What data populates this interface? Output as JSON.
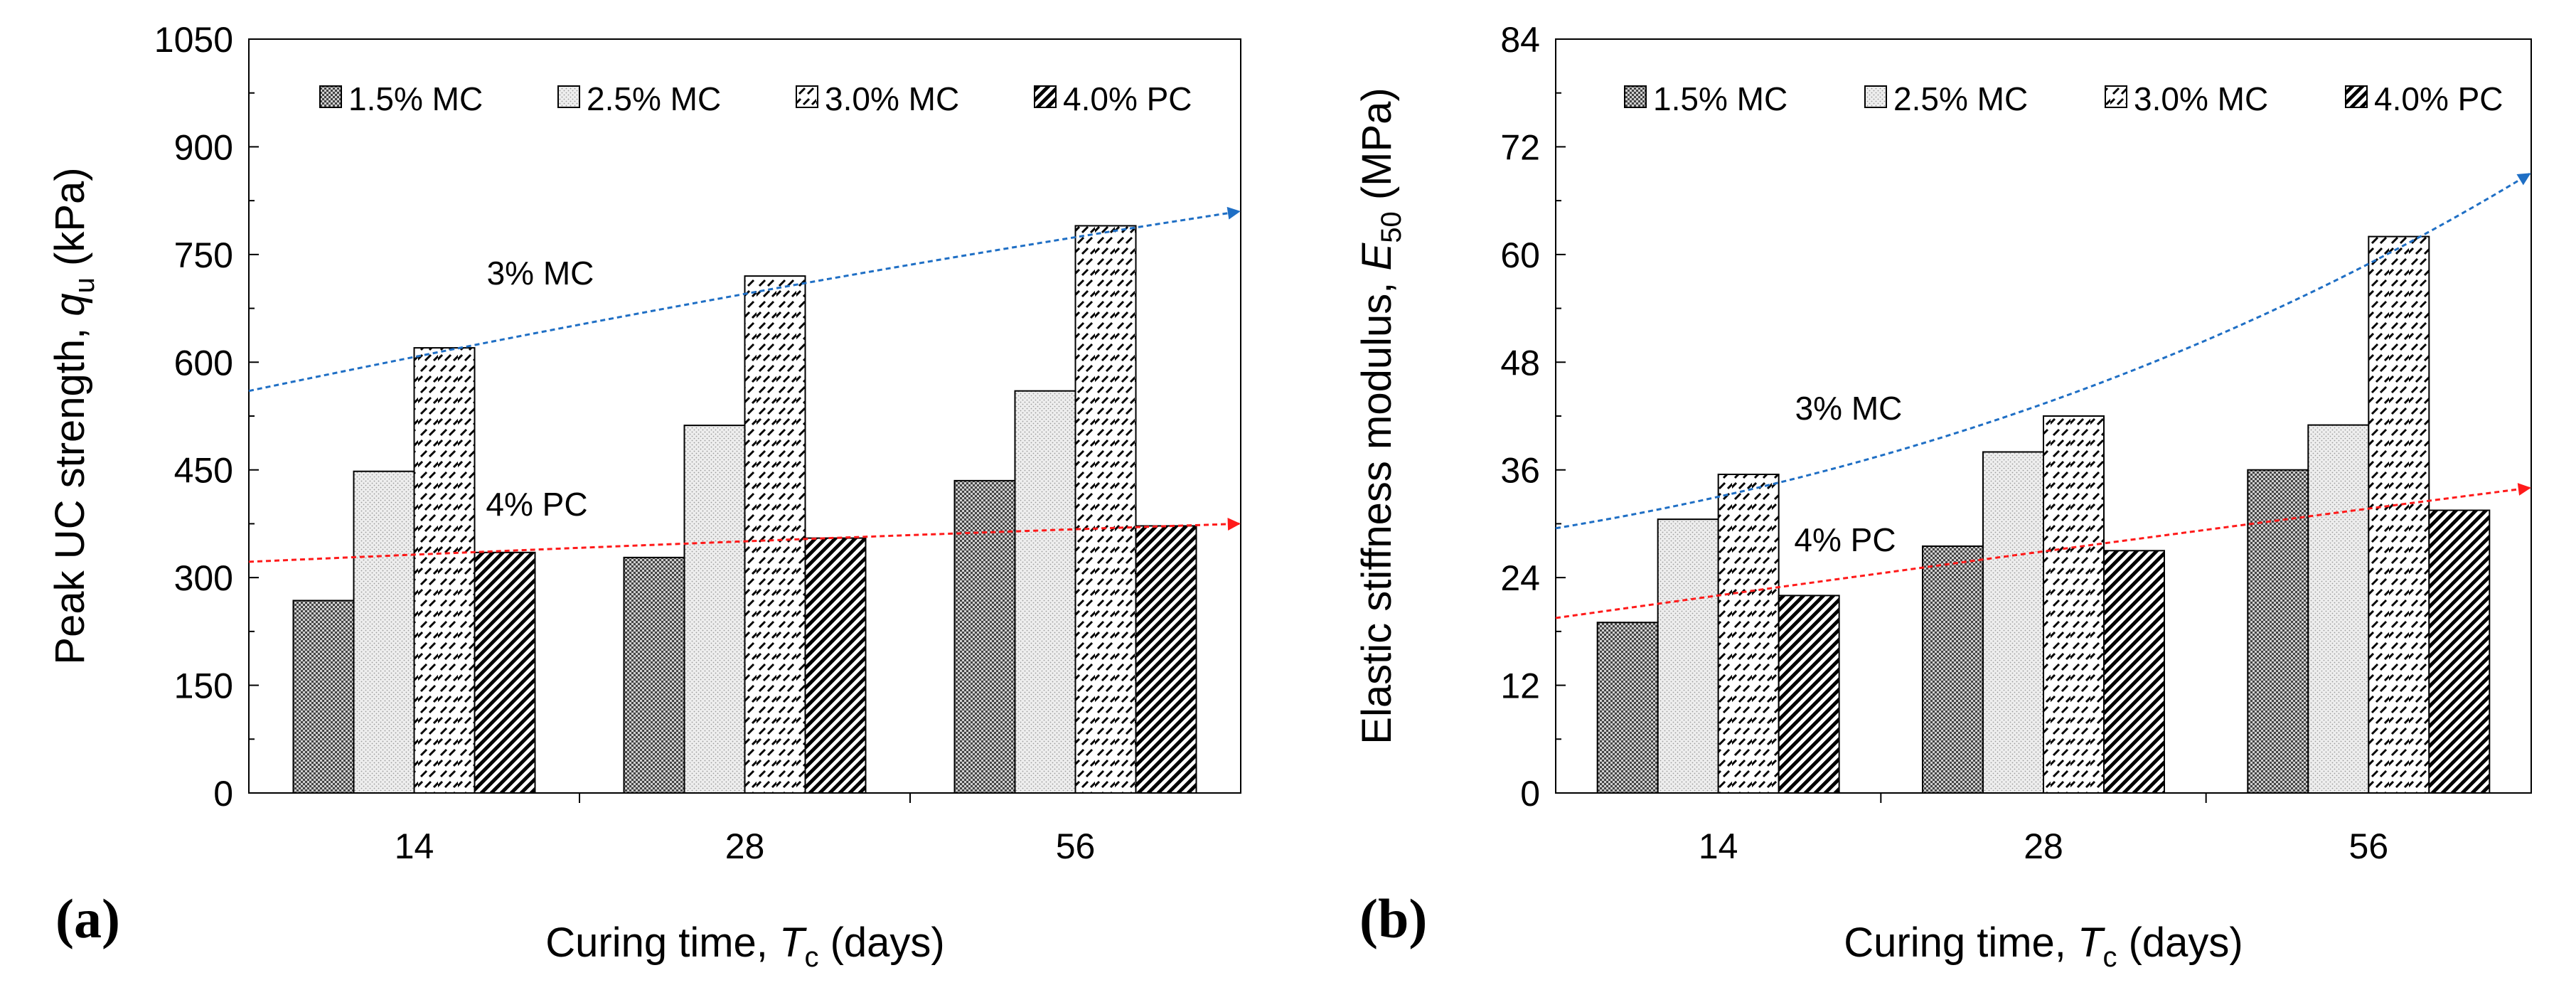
{
  "chart_data": [
    {
      "type": "bar",
      "panel_label": "(a)",
      "categories": [
        "14",
        "28",
        "56"
      ],
      "series": [
        {
          "name": "1.5% MC",
          "values": [
            268,
            328,
            435
          ]
        },
        {
          "name": "2.5% MC",
          "values": [
            448,
            512,
            560
          ]
        },
        {
          "name": "3.0% MC",
          "values": [
            620,
            720,
            790
          ]
        },
        {
          "name": "4.0% PC",
          "values": [
            335,
            355,
            372
          ]
        }
      ],
      "ylabel": "Peak UC strength, q",
      "ylabel_sub": "u",
      "ylabel_unit": " (kPa)",
      "xlabel": "Curing time, T",
      "xlabel_sub": "c",
      "xlabel_unit": " (days)",
      "ylim": [
        0,
        1050
      ],
      "yticks": [
        0,
        150,
        300,
        450,
        600,
        750,
        900,
        1050
      ],
      "trends": [
        {
          "label": "3% MC",
          "color": "#1f6fc5",
          "from": 560,
          "to": 810
        },
        {
          "label": "4% PC",
          "color": "#ff1a1a",
          "from": 322,
          "to": 375
        }
      ],
      "legend_position": "top"
    },
    {
      "type": "bar",
      "panel_label": "(b)",
      "categories": [
        "14",
        "28",
        "56"
      ],
      "series": [
        {
          "name": "1.5% MC",
          "values": [
            19,
            27.5,
            36
          ]
        },
        {
          "name": "2.5% MC",
          "values": [
            30.5,
            38,
            41
          ]
        },
        {
          "name": "3.0% MC",
          "values": [
            35.5,
            42,
            62
          ]
        },
        {
          "name": "4.0% PC",
          "values": [
            22,
            27,
            31.5
          ]
        }
      ],
      "ylabel": "Elastic stiffness modulus, E",
      "ylabel_sub": "50",
      "ylabel_unit": " (MPa)",
      "xlabel": "Curing time, T",
      "xlabel_sub": "c",
      "xlabel_unit": " (days)",
      "ylim": [
        0,
        84
      ],
      "yticks": [
        0,
        12,
        24,
        36,
        48,
        60,
        72,
        84
      ],
      "trends": [
        {
          "label": "3% MC",
          "color": "#1f6fc5",
          "from": 29.5,
          "to": 69
        },
        {
          "label": "4% PC",
          "color": "#ff1a1a",
          "from": 19.5,
          "to": 34
        }
      ],
      "legend_position": "top"
    }
  ]
}
